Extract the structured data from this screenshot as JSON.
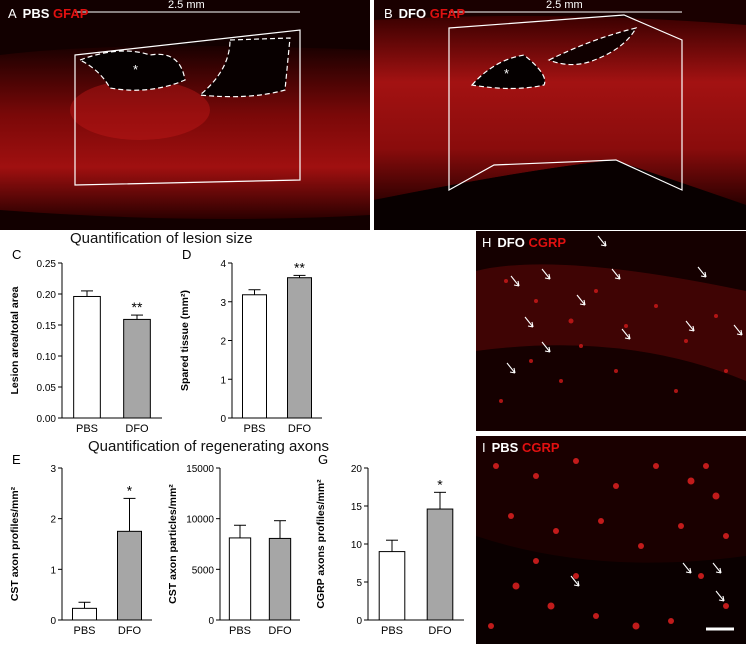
{
  "panels": {
    "A": {
      "letter": "A",
      "group": "PBS",
      "marker": "GFAP",
      "scale": "2.5 mm",
      "asterisk": "*"
    },
    "B": {
      "letter": "B",
      "group": "DFO",
      "marker": "GFAP",
      "scale": "2.5 mm",
      "asterisk": "*"
    },
    "H": {
      "letter": "H",
      "group": "DFO",
      "marker": "CGRP"
    },
    "I": {
      "letter": "I",
      "group": "PBS",
      "marker": "CGRP"
    }
  },
  "sections": {
    "lesion": "Quantification of lesion size",
    "axons": "Quantification of regenerating axons"
  },
  "colors": {
    "pbs_bar": "#ffffff",
    "dfo_bar": "#a6a6a6",
    "marker_red": "#e01010"
  },
  "chart_data": [
    {
      "id": "C",
      "letter": "C",
      "type": "bar",
      "categories": [
        "PBS",
        "DFO"
      ],
      "values": [
        0.196,
        0.159
      ],
      "errors": [
        0.009,
        0.007
      ],
      "ylabel": "Lesion area/total area",
      "ylim": [
        0,
        0.25
      ],
      "ticks": [
        "0.00",
        "0.05",
        "0.10",
        "0.15",
        "0.20",
        "0.25"
      ],
      "annotations": [
        "",
        "**"
      ]
    },
    {
      "id": "D",
      "letter": "D",
      "type": "bar",
      "categories": [
        "PBS",
        "DFO"
      ],
      "values": [
        3.18,
        3.62
      ],
      "errors": [
        0.13,
        0.06
      ],
      "ylabel": "Spared tissue (mm²)",
      "ylim": [
        0,
        4
      ],
      "ticks": [
        "0",
        "1",
        "2",
        "3",
        "4"
      ],
      "annotations": [
        "",
        "**"
      ]
    },
    {
      "id": "E",
      "letter": "E",
      "type": "bar",
      "categories": [
        "PBS",
        "DFO"
      ],
      "values": [
        0.23,
        1.75
      ],
      "errors": [
        0.12,
        0.65
      ],
      "ylabel": "CST axon profiles/mm²",
      "ylim": [
        0,
        3
      ],
      "ticks": [
        "0",
        "1",
        "2",
        "3"
      ],
      "annotations": [
        "",
        "*"
      ]
    },
    {
      "id": "F",
      "letter": "",
      "type": "bar",
      "categories": [
        "PBS",
        "DFO"
      ],
      "values": [
        8100,
        8050
      ],
      "errors": [
        1250,
        1750
      ],
      "ylabel": "CST axon particles/mm²",
      "ylim": [
        0,
        15000
      ],
      "ticks": [
        "0",
        "5000",
        "10000",
        "15000"
      ],
      "annotations": [
        "",
        ""
      ]
    },
    {
      "id": "G",
      "letter": "G",
      "type": "bar",
      "categories": [
        "PBS",
        "DFO"
      ],
      "values": [
        9.0,
        14.6
      ],
      "errors": [
        1.5,
        2.2
      ],
      "ylabel": "CGRP axons profiles/mm²",
      "ylim": [
        0,
        20
      ],
      "ticks": [
        "0",
        "5",
        "10",
        "15",
        "20"
      ],
      "annotations": [
        "",
        "*"
      ]
    }
  ]
}
